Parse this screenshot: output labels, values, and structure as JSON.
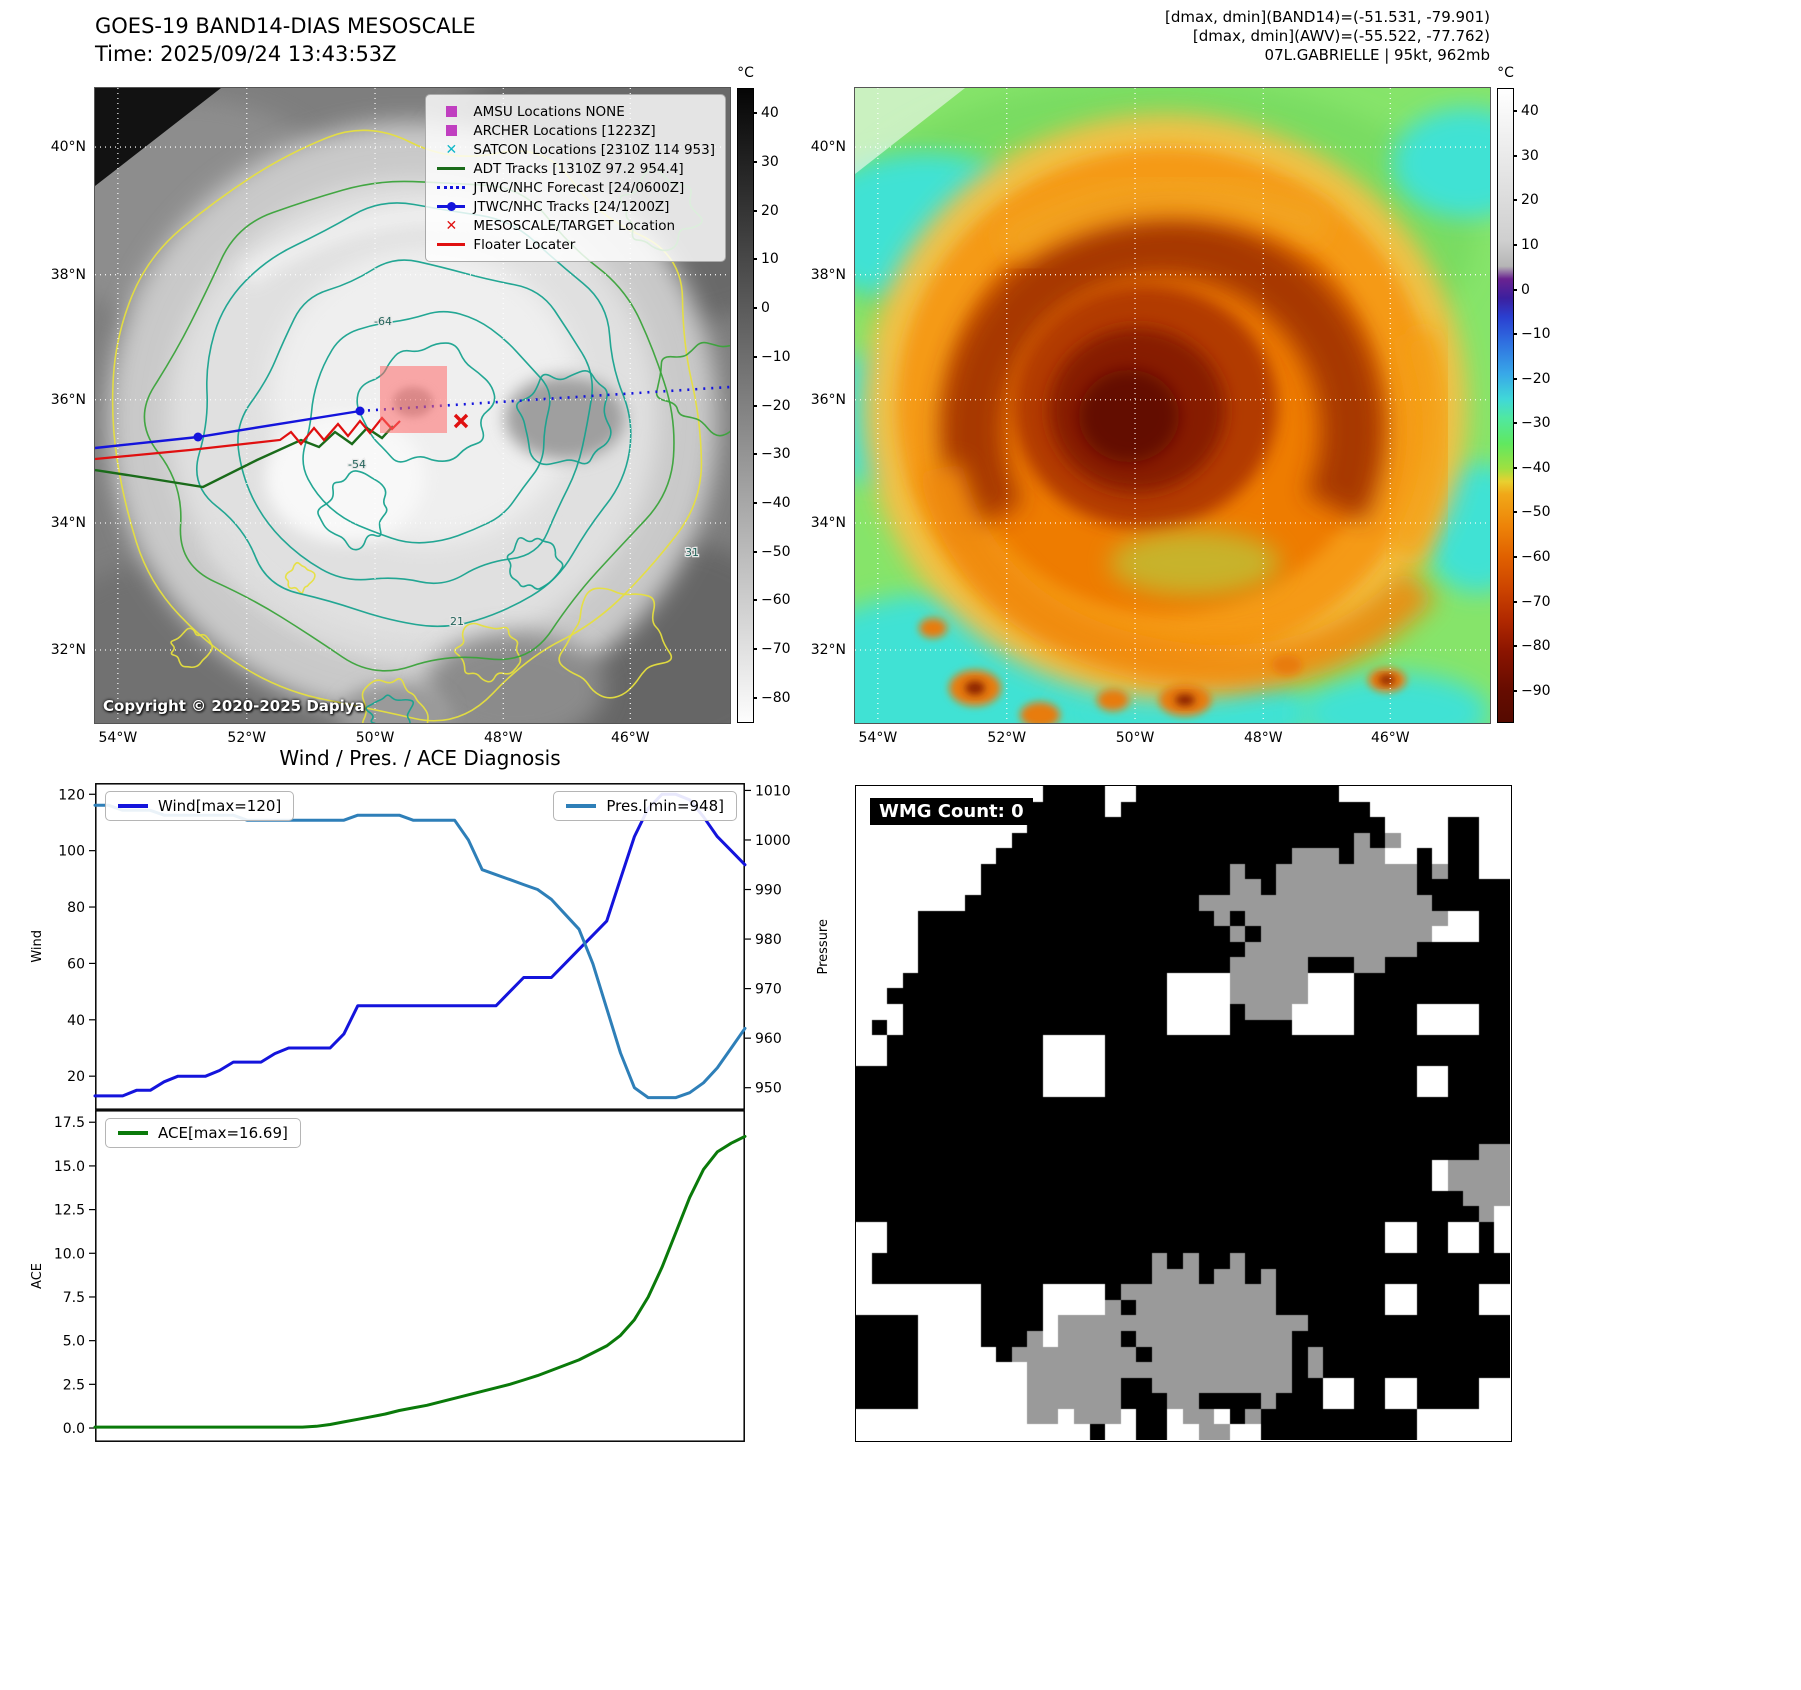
{
  "ir_panel": {
    "title": "GOES-19 BAND14-DIAS MESOSCALE",
    "time_line": "Time: 2025/09/24 13:43:53Z",
    "copyright": "Copyright © 2020-2025 Dapiya",
    "lat_ticks": [
      "40°N",
      "38°N",
      "36°N",
      "34°N",
      "32°N"
    ],
    "lon_ticks": [
      "54°W",
      "52°W",
      "50°W",
      "48°W",
      "46°W"
    ],
    "contour_labels": [
      "-64",
      "-54",
      "21",
      "31"
    ],
    "legend": [
      {
        "marker": "square",
        "color": "#c03fc0",
        "label": "AMSU Locations NONE"
      },
      {
        "marker": "square",
        "color": "#c03fc0",
        "label": "ARCHER Locations [1223Z]"
      },
      {
        "marker": "x",
        "color": "#10b8c8",
        "label": "SATCON Locations [2310Z 114 953]"
      },
      {
        "marker": "line",
        "color": "#1a6b1a",
        "label": "ADT Tracks [1310Z 97.2 954.4]"
      },
      {
        "marker": "dotted",
        "color": "#1414dc",
        "label": "JTWC/NHC Forecast [24/0600Z]"
      },
      {
        "marker": "line-dot",
        "color": "#1414dc",
        "label": "JTWC/NHC Tracks [24/1200Z]"
      },
      {
        "marker": "x",
        "color": "#e01010",
        "label": "MESOSCALE/TARGET Location"
      },
      {
        "marker": "line",
        "color": "#e01010",
        "label": "Floater Locater"
      }
    ],
    "colorbar": {
      "unit": "°C",
      "ticks": [
        40,
        30,
        20,
        10,
        0,
        -10,
        -20,
        -30,
        -40,
        -50,
        -60,
        -70,
        -80
      ],
      "vmax": 45,
      "vmin": -85
    }
  },
  "enh_panel": {
    "header_lines": [
      "[dmax, dmin](BAND14)=(-51.531, -79.901)",
      "[dmax, dmin](AWV)=(-55.522, -77.762)",
      "07L.GABRIELLE | 95kt, 962mb"
    ],
    "lat_ticks": [
      "40°N",
      "38°N",
      "36°N",
      "34°N",
      "32°N"
    ],
    "lon_ticks": [
      "54°W",
      "52°W",
      "50°W",
      "48°W",
      "46°W"
    ],
    "colorbar": {
      "unit": "°C",
      "ticks": [
        40,
        30,
        20,
        10,
        0,
        -10,
        -20,
        -30,
        -40,
        -50,
        -60,
        -70,
        -80,
        -90
      ],
      "vmax": 45,
      "vmin": -97
    }
  },
  "wmg_panel": {
    "count_label": "WMG Count: 0"
  },
  "chart_data": [
    {
      "type": "line",
      "title": "Wind / Pres. / ACE Diagnosis",
      "x_axis": {
        "label": "",
        "tick_labels": []
      },
      "series": [
        {
          "name": "Wind[max=120]",
          "color": "#1414dc",
          "axis": "left",
          "legend_pos": "nw",
          "width": 3,
          "values": [
            13,
            13,
            13,
            15,
            15,
            18,
            20,
            20,
            20,
            22,
            25,
            25,
            25,
            28,
            30,
            30,
            30,
            30,
            35,
            45,
            45,
            45,
            45,
            45,
            45,
            45,
            45,
            45,
            45,
            45,
            50,
            55,
            55,
            55,
            60,
            65,
            70,
            75,
            90,
            105,
            115,
            120,
            120,
            118,
            112,
            105,
            100,
            95
          ]
        },
        {
          "name": "Pres.[min=948]",
          "color": "#2e7fb8",
          "axis": "right",
          "legend_pos": "ne",
          "width": 3,
          "values": [
            1007,
            1007,
            1006,
            1006,
            1006,
            1005,
            1005,
            1005,
            1005,
            1005,
            1005,
            1004,
            1004,
            1004,
            1004,
            1004,
            1004,
            1004,
            1004,
            1005,
            1005,
            1005,
            1005,
            1004,
            1004,
            1004,
            1004,
            1000,
            994,
            993,
            992,
            991,
            990,
            988,
            985,
            982,
            975,
            966,
            957,
            950,
            948,
            948,
            948,
            949,
            951,
            954,
            958,
            962
          ]
        }
      ],
      "left_axis": {
        "label": "Wind",
        "ticks": [
          20,
          40,
          60,
          80,
          100,
          120
        ],
        "tick_labels": [
          "20",
          "40",
          "60",
          "80",
          "100",
          "120"
        ],
        "min": 8,
        "max": 124
      },
      "right_axis": {
        "label": "Pressure",
        "ticks": [
          950,
          960,
          970,
          980,
          990,
          1000,
          1010
        ],
        "tick_labels": [
          "950",
          "960",
          "970",
          "980",
          "990",
          "1000",
          "1010"
        ],
        "min": 945.5,
        "max": 1011.5
      }
    },
    {
      "type": "line",
      "series": [
        {
          "name": "ACE[max=16.69]",
          "color": "#0a7a0a",
          "axis": "left",
          "legend_pos": "nw",
          "width": 3,
          "values": [
            0.05,
            0.05,
            0.05,
            0.05,
            0.05,
            0.05,
            0.05,
            0.05,
            0.05,
            0.05,
            0.05,
            0.05,
            0.05,
            0.05,
            0.05,
            0.05,
            0.1,
            0.2,
            0.35,
            0.5,
            0.65,
            0.8,
            1.0,
            1.15,
            1.3,
            1.5,
            1.7,
            1.9,
            2.1,
            2.3,
            2.5,
            2.75,
            3.0,
            3.3,
            3.6,
            3.9,
            4.3,
            4.7,
            5.3,
            6.2,
            7.5,
            9.2,
            11.2,
            13.2,
            14.8,
            15.8,
            16.3,
            16.69
          ]
        }
      ],
      "left_axis": {
        "label": "ACE",
        "ticks": [
          0,
          2.5,
          5,
          7.5,
          10,
          12.5,
          15,
          17.5
        ],
        "tick_labels": [
          "0.0",
          "2.5",
          "5.0",
          "7.5",
          "10.0",
          "12.5",
          "15.0",
          "17.5"
        ],
        "min": -0.8,
        "max": 18.2
      }
    }
  ]
}
